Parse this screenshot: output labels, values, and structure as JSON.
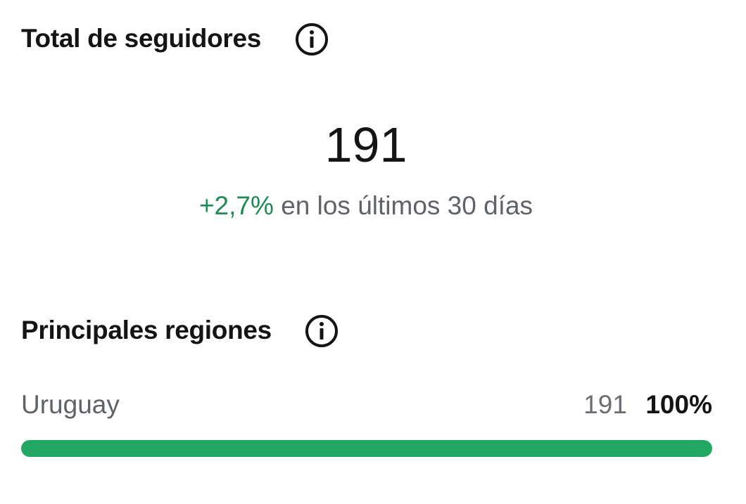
{
  "followers": {
    "title": "Total de seguidores",
    "total": 191,
    "change": "+2,7%",
    "change_note": "en los últimos 30 días"
  },
  "regions": {
    "title": "Principales regiones",
    "rows": [
      {
        "name": "Uruguay",
        "count": 191,
        "share": "100%"
      }
    ]
  }
}
